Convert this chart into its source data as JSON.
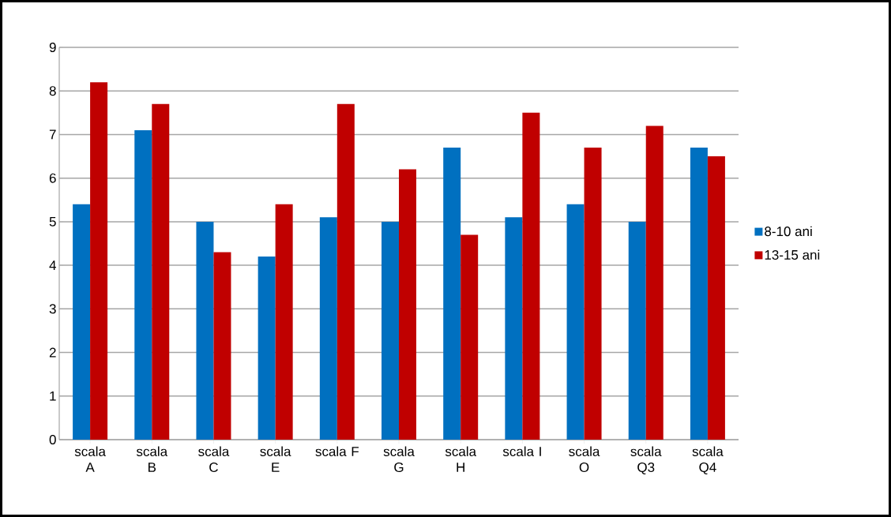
{
  "chart_data": {
    "type": "bar",
    "categories": [
      "scala A",
      "scala B",
      "scala C",
      "scala E",
      "scala F",
      "scala G",
      "scala H",
      "scala I",
      "scala O",
      "scala Q3",
      "scala Q4"
    ],
    "series": [
      {
        "name": "8-10 ani",
        "color": "#0070c0",
        "values": [
          5.4,
          7.1,
          5.0,
          4.2,
          5.1,
          5.0,
          6.7,
          5.1,
          5.4,
          5.0,
          6.7
        ]
      },
      {
        "name": "13-15 ani",
        "color": "#c00000",
        "values": [
          8.2,
          7.7,
          4.3,
          5.4,
          7.7,
          6.2,
          4.7,
          7.5,
          6.7,
          7.2,
          6.5
        ]
      }
    ],
    "ylim": [
      0,
      9
    ],
    "yticks": [
      0,
      1,
      2,
      3,
      4,
      5,
      6,
      7,
      8,
      9
    ],
    "grid": "y",
    "legend": "right"
  }
}
